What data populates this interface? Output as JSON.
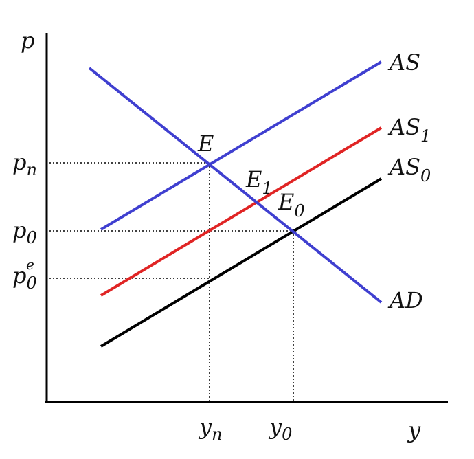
{
  "axes": {
    "y_axis_label": "p",
    "x_axis_label": "y"
  },
  "curves": {
    "as": {
      "label": "AS",
      "color": "#3f3fd0"
    },
    "as1": {
      "label": "AS",
      "sub": "1",
      "color": "#e02424"
    },
    "as0": {
      "label": "AS",
      "sub": "0",
      "color": "#000000"
    },
    "ad": {
      "label": "AD",
      "color": "#3f3fd0"
    }
  },
  "points": {
    "e": {
      "label": "E"
    },
    "e1": {
      "label": "E",
      "sub": "1"
    },
    "e0": {
      "label": "E",
      "sub": "0"
    }
  },
  "price_levels": {
    "pn": {
      "base": "p",
      "sub": "n"
    },
    "p0": {
      "base": "p",
      "sub": "0"
    },
    "p0e": {
      "base": "p",
      "sub": "0",
      "sup": "e"
    }
  },
  "output_levels": {
    "yn": {
      "base": "y",
      "sub": "n"
    },
    "y0": {
      "base": "y",
      "sub": "0"
    }
  }
}
